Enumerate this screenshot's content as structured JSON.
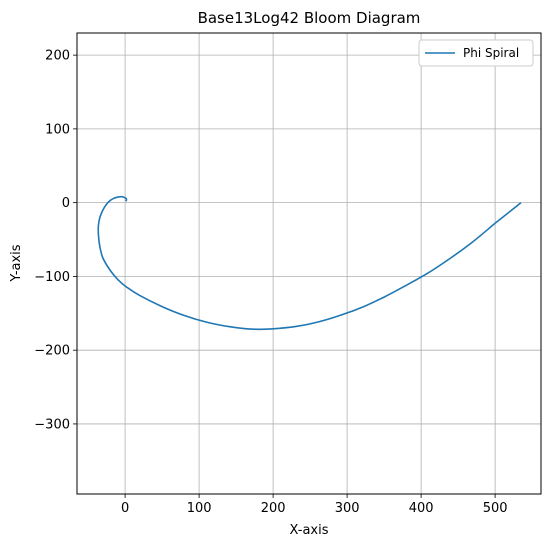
{
  "chart_data": {
    "type": "line",
    "title": "Base13Log42 Bloom Diagram",
    "xlabel": "X-axis",
    "ylabel": "Y-axis",
    "xlim": [
      -65,
      562
    ],
    "ylim": [
      -395,
      230
    ],
    "xticks": [
      0,
      100,
      200,
      300,
      400,
      500
    ],
    "yticks": [
      200,
      100,
      0,
      -100,
      -200,
      -300
    ],
    "xtick_labels": [
      "0",
      "100",
      "200",
      "300",
      "400",
      "500"
    ],
    "ytick_labels": [
      "200",
      "100",
      "0",
      "−100",
      "−200",
      "−300"
    ],
    "grid": true,
    "legend_position": "top-right",
    "series": [
      {
        "name": "Phi Spiral",
        "color": "#1f77b4",
        "x": [
          1,
          2,
          1,
          -2,
          -5,
          -10,
          -15,
          -20,
          -25,
          -30,
          -34,
          -36,
          -36,
          -34,
          -30,
          -20,
          -10,
          0,
          20,
          50,
          80,
          110,
          140,
          170,
          200,
          230,
          260,
          290,
          320,
          350,
          380,
          410,
          440,
          470,
          500,
          520,
          535
        ],
        "y": [
          2,
          4,
          6,
          7.5,
          8,
          7.5,
          6,
          3,
          -2,
          -10,
          -20,
          -30,
          -45,
          -60,
          -75,
          -92,
          -104,
          -113,
          -126,
          -141,
          -153,
          -162,
          -168,
          -171.5,
          -171,
          -168,
          -162,
          -153,
          -142,
          -128,
          -112,
          -95,
          -75,
          -53,
          -28,
          -12,
          0
        ]
      }
    ]
  }
}
